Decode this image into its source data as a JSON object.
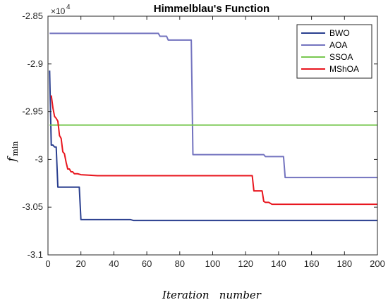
{
  "chart_data": {
    "type": "line",
    "title": "Himmelblau's Function",
    "xlabel": "Iteration   number",
    "ylabel_main": "f",
    "ylabel_sub": "min",
    "y_scale_factor": "4",
    "xlim": [
      0,
      200
    ],
    "ylim": [
      -3.1,
      -2.85
    ],
    "xticks": [
      0,
      20,
      40,
      60,
      80,
      100,
      120,
      140,
      160,
      180,
      200
    ],
    "yticks": [
      -2.85,
      -2.9,
      -2.95,
      -3,
      -3.05,
      -3.1
    ],
    "xtick_labels": [
      "0",
      "20",
      "40",
      "60",
      "80",
      "100",
      "120",
      "140",
      "160",
      "180",
      "200"
    ],
    "ytick_labels": [
      "-2.85",
      "-2.9",
      "-2.95",
      "-3",
      "-3.05",
      "-3.1"
    ],
    "grid": false,
    "legend_position": "top-right",
    "series": [
      {
        "name": "BWO",
        "color": "#2a3f8f",
        "x": [
          1,
          2,
          3,
          4,
          5,
          6,
          7,
          19,
          20,
          50,
          52,
          200
        ],
        "y": [
          -2.907,
          -2.985,
          -2.985,
          -2.987,
          -2.987,
          -3.029,
          -3.029,
          -3.029,
          -3.063,
          -3.063,
          -3.064,
          -3.064
        ]
      },
      {
        "name": "AOA",
        "color": "#7373bf",
        "x": [
          1,
          67,
          68,
          72,
          73,
          87,
          88,
          131,
          132,
          143,
          144,
          200
        ],
        "y": [
          -2.868,
          -2.868,
          -2.871,
          -2.871,
          -2.875,
          -2.875,
          -2.995,
          -2.995,
          -2.997,
          -2.997,
          -3.019,
          -3.019
        ]
      },
      {
        "name": "SSOA",
        "color": "#78c850",
        "x": [
          1,
          200
        ],
        "y": [
          -2.964,
          -2.964
        ]
      },
      {
        "name": "MShOA",
        "color": "#e8161e",
        "x": [
          2,
          3,
          4,
          5,
          6,
          7,
          8,
          9,
          10,
          11,
          12,
          13,
          14,
          15,
          16,
          18,
          20,
          30,
          124,
          125,
          130,
          131,
          132,
          134,
          136,
          200
        ],
        "y": [
          -2.933,
          -2.946,
          -2.955,
          -2.957,
          -2.96,
          -2.975,
          -2.978,
          -2.992,
          -2.994,
          -3.003,
          -3.01,
          -3.01,
          -3.013,
          -3.013,
          -3.015,
          -3.015,
          -3.016,
          -3.017,
          -3.017,
          -3.033,
          -3.033,
          -3.044,
          -3.045,
          -3.045,
          -3.047,
          -3.047
        ]
      }
    ]
  }
}
